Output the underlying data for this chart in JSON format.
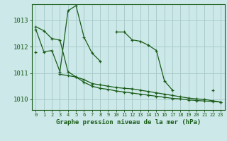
{
  "title": "Graphe pression niveau de la mer (hPa)",
  "bg_color": "#cce8e8",
  "grid_color": "#aacccc",
  "line_color": "#1a5c1a",
  "xlim": [
    -0.5,
    23.5
  ],
  "ylim": [
    1009.6,
    1013.6
  ],
  "yticks": [
    1010,
    1011,
    1012,
    1013
  ],
  "xticks": [
    0,
    1,
    2,
    3,
    4,
    5,
    6,
    7,
    8,
    9,
    10,
    11,
    12,
    13,
    14,
    15,
    16,
    17,
    18,
    19,
    20,
    21,
    22,
    23
  ],
  "series": [
    {
      "x": [
        0,
        1,
        2,
        3,
        4,
        5,
        6,
        7,
        8,
        9,
        10,
        11,
        12,
        13,
        14,
        15,
        16,
        17,
        18,
        19,
        20,
        21,
        22,
        23
      ],
      "y": [
        1012.65,
        1011.8,
        1011.85,
        1011.05,
        1013.35,
        1013.55,
        1012.35,
        1011.75,
        1011.45,
        null,
        1012.55,
        1012.55,
        1012.25,
        1012.2,
        1012.05,
        1011.85,
        1010.7,
        1010.35,
        null,
        null,
        null,
        null,
        1010.35,
        null
      ]
    },
    {
      "x": [
        0,
        1,
        2,
        3,
        4,
        5,
        6,
        7,
        8,
        9,
        10,
        11,
        12,
        13,
        14,
        15,
        16,
        17,
        18,
        19,
        20,
        21,
        22,
        23
      ],
      "y": [
        1011.8,
        null,
        null,
        1010.95,
        1010.9,
        1010.85,
        1010.75,
        1010.6,
        1010.55,
        1010.5,
        1010.45,
        1010.42,
        1010.4,
        1010.35,
        1010.3,
        1010.25,
        1010.2,
        1010.15,
        1010.1,
        1010.05,
        1010.02,
        1010.0,
        1009.95,
        1009.9
      ]
    },
    {
      "x": [
        0,
        1,
        2,
        3,
        4,
        5,
        6,
        7,
        8,
        9,
        10,
        11,
        12,
        13,
        14,
        15,
        16,
        17,
        18,
        19,
        20,
        21,
        22,
        23
      ],
      "y": [
        1012.75,
        1012.6,
        1012.3,
        1012.25,
        1011.05,
        1010.85,
        1010.65,
        1010.5,
        1010.42,
        1010.38,
        1010.32,
        1010.28,
        1010.24,
        1010.2,
        1010.16,
        1010.12,
        1010.08,
        1010.04,
        1010.02,
        1009.98,
        1009.96,
        1009.94,
        1009.92,
        1009.9
      ]
    }
  ]
}
